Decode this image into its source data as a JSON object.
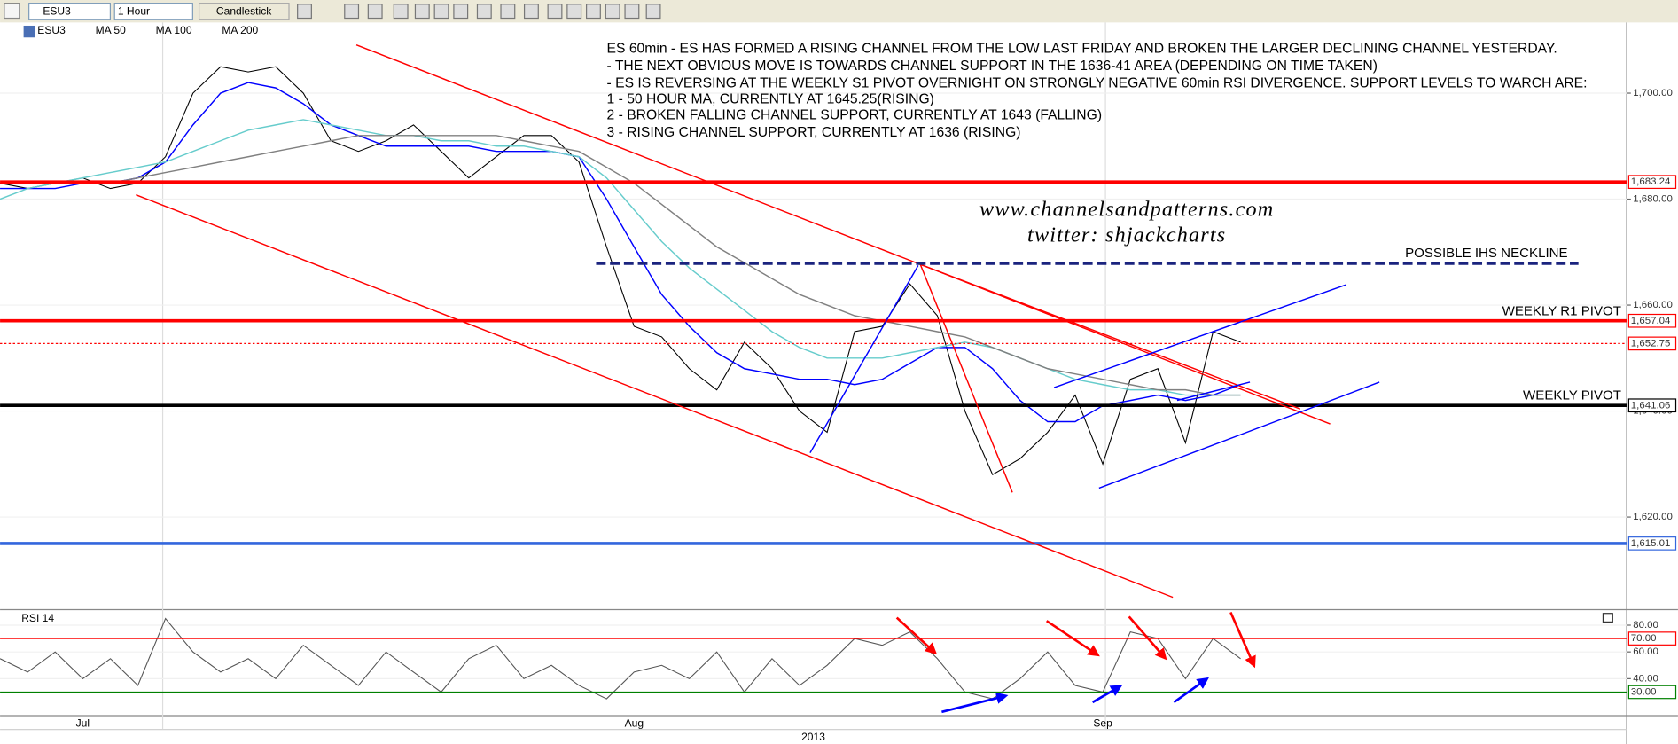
{
  "toolbar": {
    "symbol": "ESU3",
    "interval": "1 Hour",
    "style": "Candlestick"
  },
  "chart_data": [
    {
      "type": "line",
      "categories": [
        null,
        null,
        null,
        "Jul",
        null,
        null,
        null,
        null,
        null,
        null,
        null,
        null,
        null,
        null,
        null,
        null,
        null,
        null,
        null,
        null,
        null,
        null,
        null,
        "Aug",
        null,
        null,
        null,
        null,
        null,
        null,
        null,
        null,
        null,
        null,
        null,
        null,
        null,
        null,
        null,
        null,
        "Sep",
        null,
        null,
        null,
        null,
        null,
        null,
        null,
        null,
        null,
        null,
        null,
        null,
        null,
        null,
        null,
        null,
        null,
        null,
        null
      ],
      "year_label": "2013",
      "series": [
        {
          "name": "ESU3",
          "color": "#000000",
          "values": [
            1683,
            1682,
            1683,
            1684,
            1682,
            1683,
            1688,
            1700,
            1705,
            1704,
            1705,
            1700,
            1691,
            1689,
            1691,
            1694,
            1689,
            1684,
            1688,
            1692,
            1692,
            1687,
            1671,
            1656,
            1654,
            1648,
            1644,
            1653,
            1648,
            1640,
            1636,
            1655,
            1656,
            1664,
            1658,
            1640,
            1628,
            1631,
            1636,
            1643,
            1630,
            1646,
            1648,
            1634,
            1655,
            1653,
            null,
            null,
            null,
            null,
            null,
            null,
            null,
            null,
            null,
            null,
            null,
            null,
            null,
            null
          ]
        },
        {
          "name": "MA 50",
          "color": "#0000ff",
          "values": [
            1682,
            1682,
            1682,
            1683,
            1683,
            1684,
            1687,
            1694,
            1700,
            1702,
            1701,
            1698,
            1694,
            1692,
            1690,
            1690,
            1690,
            1690,
            1689,
            1689,
            1689,
            1688,
            1680,
            1671,
            1662,
            1656,
            1651,
            1648,
            1647,
            1646,
            1646,
            1645,
            1646,
            1649,
            1652,
            1652,
            1648,
            1642,
            1638,
            1638,
            1641,
            1642,
            1643,
            1642,
            1643,
            1645,
            null,
            null,
            null,
            null,
            null,
            null,
            null,
            null,
            null,
            null,
            null,
            null,
            null,
            null
          ]
        },
        {
          "name": "MA 100",
          "color": "#66cccc",
          "values": [
            1680,
            1682,
            1683,
            1684,
            1685,
            1686,
            1687,
            1689,
            1691,
            1693,
            1694,
            1695,
            1694,
            1693,
            1692,
            1692,
            1691,
            1691,
            1690,
            1690,
            1689,
            1688,
            1684,
            1678,
            1672,
            1667,
            1663,
            1659,
            1655,
            1652,
            1650,
            1650,
            1650,
            1651,
            1652,
            1653,
            1652,
            1650,
            1648,
            1646,
            1645,
            1644,
            1644,
            1643,
            1643,
            1643,
            null,
            null,
            null,
            null,
            null,
            null,
            null,
            null,
            null,
            null,
            null,
            null,
            null,
            null
          ]
        },
        {
          "name": "MA 200",
          "color": "#808080",
          "values": [
            null,
            null,
            null,
            null,
            1683,
            1684,
            1685,
            1686,
            1687,
            1688,
            1689,
            1690,
            1691,
            1692,
            1692,
            1692,
            1692,
            1692,
            1692,
            1691,
            1690,
            1689,
            1686,
            1683,
            1679,
            1675,
            1671,
            1668,
            1665,
            1662,
            1660,
            1658,
            1657,
            1656,
            1655,
            1654,
            1652,
            1650,
            1648,
            1647,
            1646,
            1645,
            1644,
            1644,
            1643,
            1643,
            null,
            null,
            null,
            null,
            null,
            null,
            null,
            null,
            null,
            null,
            null,
            null,
            null,
            null
          ]
        }
      ],
      "ylim": [
        1603,
        1713
      ],
      "yticks": [
        {
          "value": 1700,
          "label": "1,700.00"
        },
        {
          "value": 1680,
          "label": "1,680.00"
        },
        {
          "value": 1660,
          "label": "1,660.00"
        },
        {
          "value": 1640,
          "label": "1,640.00"
        },
        {
          "value": 1620,
          "label": "1,620.00"
        }
      ],
      "levels": [
        {
          "value": 1683.24,
          "label": "1,683.24",
          "color": "#ff0000",
          "line_style": "solid"
        },
        {
          "value": 1657.04,
          "label": "1,657.04",
          "color": "#ff0000",
          "line_style": "solid"
        },
        {
          "value": 1652.75,
          "label": "1,652.75",
          "color": "#ff0000",
          "line_style": "dotted"
        },
        {
          "value": 1641.06,
          "label": "1,641.06",
          "color": "#000000",
          "line_style": "solid"
        },
        {
          "value": 1615.01,
          "label": "1,615.01",
          "color": "#3366dd",
          "line_style": "solid"
        }
      ],
      "annotations": {
        "notes": [
          "ES 60min - ES HAS FORMED A RISING CHANNEL FROM THE LOW LAST FRIDAY AND BROKEN THE LARGER DECLINING CHANNEL YESTERDAY.",
          "- THE NEXT OBVIOUS MOVE IS TOWARDS CHANNEL SUPPORT IN THE 1636-41 AREA (DEPENDING ON TIME TAKEN)",
          "- ES IS REVERSING AT THE WEEKLY S1 PIVOT OVERNIGHT ON STRONGLY NEGATIVE 60min RSI DIVERGENCE. SUPPORT LEVELS TO WARCH ARE:",
          "1 - 50 HOUR MA, CURRENTLY AT 1645.25(RISING)",
          "2 - BROKEN FALLING CHANNEL SUPPORT, CURRENTLY AT 1643 (FALLING)",
          "3 - RISING CHANNEL SUPPORT, CURRENTLY AT 1636 (RISING)"
        ],
        "website": "www.channelsandpatterns.com",
        "twitter": "twitter: shjackcharts",
        "neckline": "POSSIBLE IHS NECKLINE",
        "r1_pivot": "WEEKLY R1 PIVOT",
        "pivot": "WEEKLY PIVOT"
      }
    },
    {
      "type": "line",
      "series": [
        {
          "name": "RSI 14",
          "color": "#555555",
          "values": [
            55,
            45,
            60,
            40,
            55,
            35,
            85,
            60,
            45,
            55,
            40,
            65,
            50,
            35,
            60,
            45,
            30,
            55,
            65,
            40,
            50,
            35,
            25,
            45,
            50,
            40,
            60,
            30,
            55,
            35,
            50,
            70,
            65,
            75,
            55,
            30,
            25,
            40,
            60,
            35,
            30,
            75,
            70,
            40,
            70,
            55,
            null,
            null,
            null,
            null,
            null,
            null,
            null,
            null,
            null,
            null,
            null,
            null,
            null,
            null
          ]
        }
      ],
      "ylim": [
        13,
        90
      ],
      "yticks": [
        {
          "value": 80,
          "label": "80.00"
        },
        {
          "value": 60,
          "label": "60.00"
        },
        {
          "value": 40,
          "label": "40.00"
        }
      ],
      "levels": [
        {
          "value": 70,
          "label": "70.00",
          "color": "#ff0000",
          "line_style": "solid"
        },
        {
          "value": 30,
          "label": "30.00",
          "color": "#008000",
          "line_style": "solid"
        }
      ]
    }
  ]
}
